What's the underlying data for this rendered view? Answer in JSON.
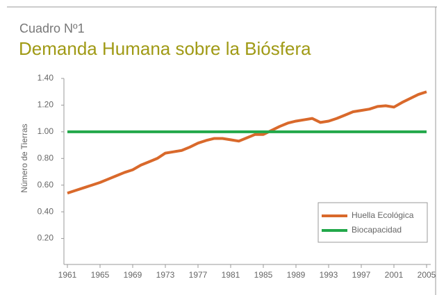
{
  "chart_data": {
    "type": "line",
    "title": "Cuadro Nº1",
    "subtitle": "Demanda Humana sobre la Biósfera",
    "y_label": "Número de Tierras",
    "x": [
      1961,
      1962,
      1963,
      1964,
      1965,
      1966,
      1967,
      1968,
      1969,
      1970,
      1971,
      1972,
      1973,
      1974,
      1975,
      1976,
      1977,
      1978,
      1979,
      1980,
      1981,
      1982,
      1983,
      1984,
      1985,
      1986,
      1987,
      1988,
      1989,
      1990,
      1991,
      1992,
      1993,
      1994,
      1995,
      1996,
      1997,
      1998,
      1999,
      2000,
      2001,
      2002,
      2003,
      2004,
      2005
    ],
    "series": [
      {
        "name": "Huella Ecológica",
        "color": "#d9692b",
        "values": [
          0.54,
          0.56,
          0.58,
          0.6,
          0.62,
          0.645,
          0.67,
          0.695,
          0.715,
          0.75,
          0.775,
          0.8,
          0.84,
          0.85,
          0.86,
          0.885,
          0.915,
          0.935,
          0.95,
          0.95,
          0.94,
          0.93,
          0.955,
          0.98,
          0.98,
          1.01,
          1.04,
          1.065,
          1.08,
          1.09,
          1.1,
          1.07,
          1.08,
          1.1,
          1.125,
          1.15,
          1.16,
          1.17,
          1.19,
          1.195,
          1.185,
          1.22,
          1.25,
          1.28,
          1.3
        ]
      },
      {
        "name": "Biocapacidad",
        "color": "#22a84a",
        "values": [
          1,
          1,
          1,
          1,
          1,
          1,
          1,
          1,
          1,
          1,
          1,
          1,
          1,
          1,
          1,
          1,
          1,
          1,
          1,
          1,
          1,
          1,
          1,
          1,
          1,
          1,
          1,
          1,
          1,
          1,
          1,
          1,
          1,
          1,
          1,
          1,
          1,
          1,
          1,
          1,
          1,
          1,
          1,
          1,
          1
        ]
      }
    ],
    "xlim": [
      1961,
      2005
    ],
    "xticks": [
      1961,
      1965,
      1969,
      1973,
      1977,
      1981,
      1985,
      1989,
      1993,
      1997,
      2001,
      2005
    ],
    "ylim": [
      0,
      1.4
    ],
    "yticks": [
      {
        "value": 0.2,
        "label": "0.20"
      },
      {
        "value": 0.4,
        "label": "0.40"
      },
      {
        "value": 0.6,
        "label": "0.60"
      },
      {
        "value": 0.8,
        "label": "0.80"
      },
      {
        "value": 1,
        "label": "1.00"
      },
      {
        "value": 1.2,
        "label": "1.20"
      },
      {
        "value": 1.4,
        "label": "1.40"
      }
    ],
    "legend": "lower right"
  }
}
